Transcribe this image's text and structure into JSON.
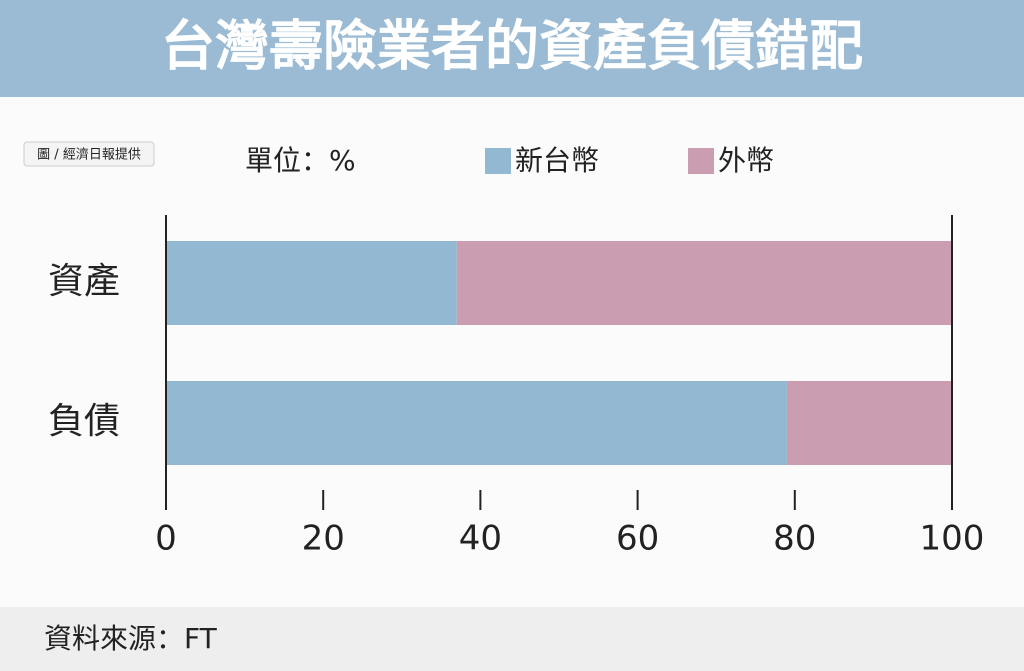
{
  "chart_data": {
    "type": "stacked-bar",
    "orientation": "horizontal",
    "title": "台灣壽險業者的資產負債錯配",
    "credit": "圖 / 經濟日報提供",
    "unit_label": "單位：%",
    "source": "資料來源：FT",
    "categories": [
      "資產",
      "負債"
    ],
    "series": [
      {
        "name": "新台幣",
        "color": "#93b9d2",
        "values": [
          37,
          79
        ]
      },
      {
        "name": "外幣",
        "color": "#cb9db0",
        "values": [
          63,
          21
        ]
      }
    ],
    "xlim": [
      0,
      100
    ],
    "xticks": [
      0,
      20,
      40,
      60,
      80,
      100
    ]
  }
}
